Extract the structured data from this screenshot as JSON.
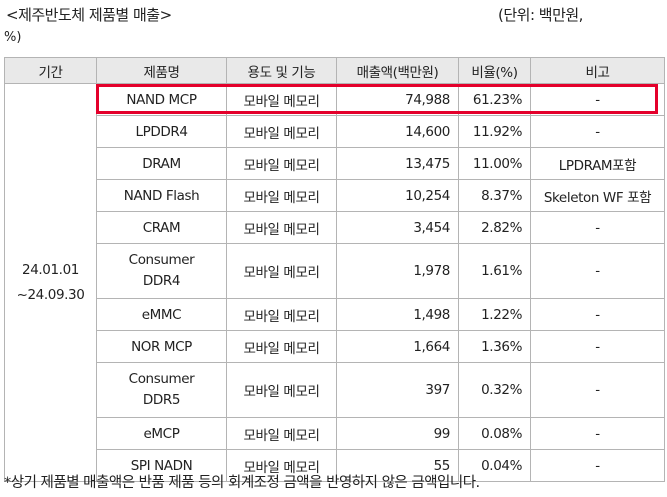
{
  "caption": {
    "title": "<제주반도체 제품별 매출>",
    "unit_line1": "(단위: 백만원,",
    "unit_line2": "%)"
  },
  "table": {
    "headers": [
      "기간",
      "제품명",
      "용도 및 기능",
      "매출액(백만원)",
      "비율(%)",
      "비고"
    ],
    "period": {
      "line1": "24.01.01",
      "line2": "~24.09.30"
    },
    "rows": [
      {
        "product": "NAND MCP",
        "product2": "",
        "usage": "모바일 메모리",
        "sales": "74,988",
        "ratio": "61.23%",
        "note": "-"
      },
      {
        "product": "LPDDR4",
        "product2": "",
        "usage": "모바일 메모리",
        "sales": "14,600",
        "ratio": "11.92%",
        "note": "-"
      },
      {
        "product": "DRAM",
        "product2": "",
        "usage": "모바일 메모리",
        "sales": "13,475",
        "ratio": "11.00%",
        "note": "LPDRAM포함"
      },
      {
        "product": "NAND Flash",
        "product2": "",
        "usage": "모바일 메모리",
        "sales": "10,254",
        "ratio": "8.37%",
        "note": "Skeleton WF 포함"
      },
      {
        "product": "CRAM",
        "product2": "",
        "usage": "모바일 메모리",
        "sales": "3,454",
        "ratio": "2.82%",
        "note": "-"
      },
      {
        "product": "Consumer",
        "product2": "DDR4",
        "usage": "모바일 메모리",
        "sales": "1,978",
        "ratio": "1.61%",
        "note": "-"
      },
      {
        "product": "eMMC",
        "product2": "",
        "usage": "모바일 메모리",
        "sales": "1,498",
        "ratio": "1.22%",
        "note": "-"
      },
      {
        "product": "NOR MCP",
        "product2": "",
        "usage": "모바일 메모리",
        "sales": "1,664",
        "ratio": "1.36%",
        "note": "-"
      },
      {
        "product": "Consumer",
        "product2": "DDR5",
        "usage": "모바일 메모리",
        "sales": "397",
        "ratio": "0.32%",
        "note": "-"
      },
      {
        "product": "eMCP",
        "product2": "",
        "usage": "모바일 메모리",
        "sales": "99",
        "ratio": "0.08%",
        "note": "-"
      },
      {
        "product": "SPI NADN",
        "product2": "",
        "usage": "모바일 메모리",
        "sales": "55",
        "ratio": "0.04%",
        "note": "-"
      }
    ]
  },
  "highlight_color": "#e4002b",
  "footnote": "*상기 제품별 매출액은 반품 제품 등의 회계조정 금액을 반영하지 않은 금액입니다."
}
